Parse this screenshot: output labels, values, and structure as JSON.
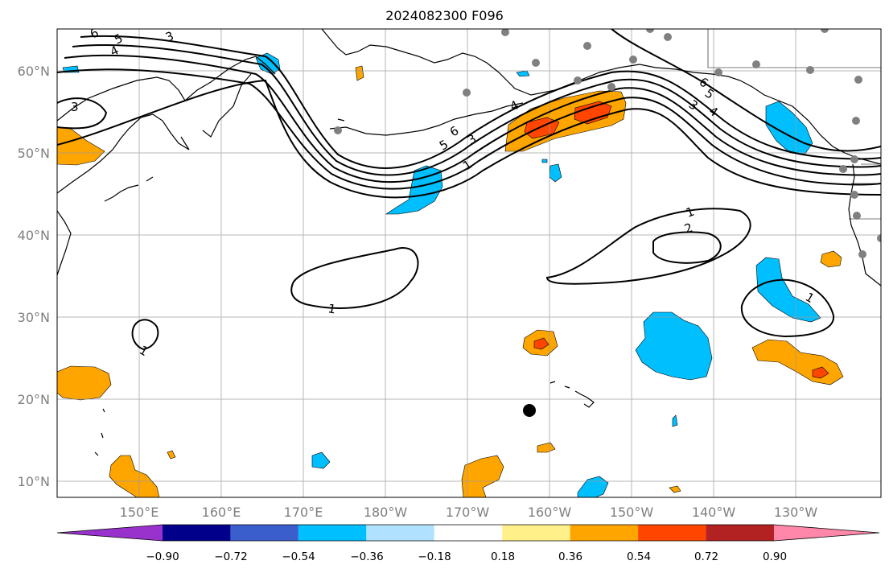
{
  "title": "2024082300 F096",
  "map": {
    "lon_ticks": [
      "150°E",
      "160°E",
      "170°E",
      "180°W",
      "170°W",
      "160°W",
      "150°W",
      "140°W",
      "130°W"
    ],
    "lat_ticks": [
      "60°N",
      "50°N",
      "40°N",
      "30°N",
      "20°N",
      "10°N"
    ],
    "contour_labels": [
      "6",
      "5",
      "4",
      "3",
      "3",
      "6",
      "5",
      "4",
      "3",
      "1",
      "6",
      "5",
      "3",
      "4",
      "1",
      "2",
      "1",
      "1",
      "1"
    ]
  },
  "colorbar": {
    "ticks": [
      "−0.90",
      "−0.72",
      "−0.54",
      "−0.36",
      "−0.18",
      "0.18",
      "0.36",
      "0.54",
      "0.72",
      "0.90"
    ],
    "colors": [
      "#9932cc",
      "#00008b",
      "#3a5fcd",
      "#00bfff",
      "#b0e2ff",
      "#ffffff",
      "#fff08a",
      "#ffa500",
      "#ff4500",
      "#b22222",
      "#ff88aa"
    ]
  },
  "colors": {
    "neg_blue": "#00bfff",
    "pos_orange": "#ffa500",
    "pos_red": "#ff4500",
    "station_grey": "#808080"
  }
}
